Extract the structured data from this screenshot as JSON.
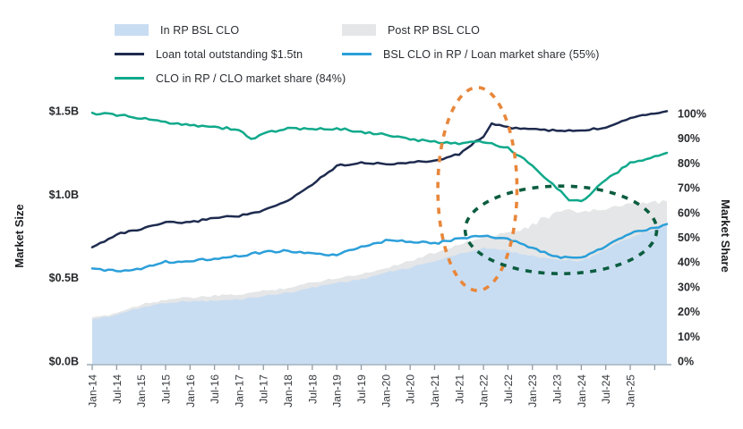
{
  "legend": {
    "items": [
      {
        "label": "In RP BSL CLO",
        "swatch": "area",
        "color": "#c9ddf2"
      },
      {
        "label": "Loan total outstanding $1.5tn",
        "swatch": "line",
        "color": "#1e2b4f"
      },
      {
        "label": "CLO in RP / CLO market share (84%)",
        "swatch": "line",
        "color": "#10a98b"
      },
      {
        "label": "Post RP BSL CLO",
        "swatch": "area",
        "color": "#e5e6e7"
      },
      {
        "label": "BSL CLO in RP / Loan market share (55%)",
        "swatch": "line",
        "color": "#2b9fd9"
      }
    ]
  },
  "chart_data": {
    "type": "area",
    "subtype": "combo area + line, dual y-axis",
    "categories": [
      "Jan-14",
      "Jul-14",
      "Jan-15",
      "Jul-15",
      "Jan-16",
      "Jul-16",
      "Jan-17",
      "Jul-17",
      "Jan-18",
      "Jul-18",
      "Jan-19",
      "Jul-19",
      "Jan-20",
      "Jul-20",
      "Jan-21",
      "Jul-21",
      "Jan-22",
      "Jul-22",
      "Jan-23",
      "Jul-23",
      "Jan-24",
      "Jul-24",
      "Jan-25"
    ],
    "x_axis": {
      "tick_interval_months": 6,
      "plot_extends_months_past_last_label": 9,
      "label_rotation_deg": -90
    },
    "left_axis": {
      "title": "Market Size",
      "ticks": [
        "$0.0B",
        "$0.5B",
        "$1.0B",
        "$1.5B"
      ],
      "range": [
        0,
        1.5
      ]
    },
    "right_axis": {
      "title": "Market Share",
      "ticks": [
        "0%",
        "10%",
        "20%",
        "30%",
        "40%",
        "50%",
        "60%",
        "70%",
        "80%",
        "90%",
        "100%"
      ],
      "range": [
        0,
        100
      ]
    },
    "series": [
      {
        "name": "In RP BSL CLO",
        "type": "area",
        "axis": "left",
        "unit": "$B",
        "color": "#c9ddf2",
        "values": [
          0.25,
          0.28,
          0.32,
          0.35,
          0.36,
          0.36,
          0.37,
          0.39,
          0.41,
          0.44,
          0.47,
          0.49,
          0.53,
          0.56,
          0.6,
          0.64,
          0.68,
          0.66,
          0.63,
          0.61,
          0.6,
          0.67,
          0.74
        ],
        "value_at_right_edge": 0.81
      },
      {
        "name": "Post RP BSL CLO",
        "type": "area",
        "axis": "left",
        "unit": "$B",
        "color": "#e5e6e7",
        "note": "stacked above In RP BSL CLO; values are cumulative top of gray band",
        "values": [
          0.255,
          0.29,
          0.34,
          0.37,
          0.38,
          0.39,
          0.4,
          0.42,
          0.44,
          0.47,
          0.5,
          0.52,
          0.56,
          0.6,
          0.65,
          0.7,
          0.74,
          0.77,
          0.82,
          0.89,
          0.9,
          0.91,
          0.93
        ],
        "value_at_right_edge": 0.96
      },
      {
        "name": "Loan total outstanding $1.5tn",
        "type": "line",
        "axis": "left",
        "unit": "$B",
        "color": "#1e2b4f",
        "values": [
          0.68,
          0.76,
          0.79,
          0.83,
          0.83,
          0.86,
          0.87,
          0.9,
          0.96,
          1.06,
          1.17,
          1.19,
          1.18,
          1.19,
          1.2,
          1.24,
          1.35,
          1.4,
          1.39,
          1.38,
          1.38,
          1.4,
          1.46
        ],
        "extra_points": [
          {
            "month_index": 98,
            "value": 1.42
          }
        ],
        "value_at_right_edge": 1.5
      },
      {
        "name": "CLO in RP / CLO market share (84%)",
        "type": "line",
        "axis": "right",
        "unit": "%",
        "color": "#10a98b",
        "values": [
          100,
          99.5,
          98,
          96.5,
          95.5,
          94.5,
          93.5,
          92,
          94,
          93.5,
          94,
          92.5,
          91.5,
          89.5,
          88.5,
          88,
          88.5,
          86,
          79,
          70,
          64.5,
          73,
          80
        ],
        "extra_points": [
          {
            "month_index": 39,
            "value": 89.5
          },
          {
            "month_index": 117,
            "value": 65
          }
        ],
        "value_at_right_edge": 84
      },
      {
        "name": "BSL CLO in RP / Loan market share (55%)",
        "type": "line",
        "axis": "right",
        "unit": "%",
        "color": "#2b9fd9",
        "values": [
          37,
          36.5,
          37.5,
          40,
          40.5,
          41.5,
          42.5,
          44,
          44.5,
          43.5,
          42.5,
          46.5,
          48.5,
          48.5,
          47.5,
          49.5,
          50.5,
          49.5,
          45.5,
          42,
          41.5,
          46.5,
          51.5
        ],
        "value_at_right_edge": 55
      }
    ],
    "annotations": [
      {
        "shape": "dashed-ellipse",
        "color": "#e8873b",
        "center_month_index": 94.5,
        "center_share_pct": 69.5,
        "radius_months": 9.7,
        "radius_share_pct": 41
      },
      {
        "shape": "dashed-ellipse",
        "color": "#0b5d3f",
        "center_month_index": 115,
        "center_share_pct": 53,
        "radius_months": 23.5,
        "radius_share_pct": 17.7
      }
    ],
    "grid": "off",
    "legend_position": "top"
  }
}
